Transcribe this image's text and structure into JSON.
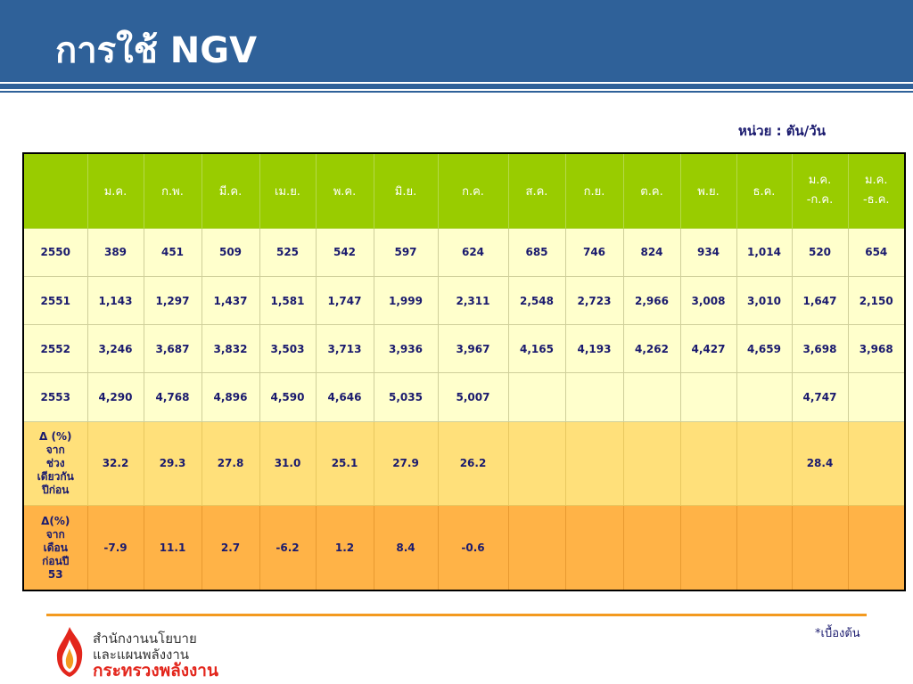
{
  "title": "การใช้ NGV",
  "unit_label": "หน่วย : ตัน/วัน",
  "table": {
    "headers": [
      "",
      "ม.ค.",
      "ก.พ.",
      "มี.ค.",
      "เม.ย.",
      "พ.ค.",
      "มิ.ย.",
      "ก.ค.",
      "ส.ค.",
      "ก.ย.",
      "ต.ค.",
      "พ.ย.",
      "ธ.ค.",
      "ม.ค.\n-ก.ค.",
      "ม.ค.\n-ธ.ค."
    ],
    "rows": [
      [
        "2550",
        "389",
        "451",
        "509",
        "525",
        "542",
        "597",
        "624",
        "685",
        "746",
        "824",
        "934",
        "1,014",
        "520",
        "654"
      ],
      [
        "2551",
        "1,143",
        "1,297",
        "1,437",
        "1,581",
        "1,747",
        "1,999",
        "2,311",
        "2,548",
        "2,723",
        "2,966",
        "3,008",
        "3,010",
        "1,647",
        "2,150"
      ],
      [
        "2552",
        "3,246",
        "3,687",
        "3,832",
        "3,503",
        "3,713",
        "3,936",
        "3,967",
        "4,165",
        "4,193",
        "4,262",
        "4,427",
        "4,659",
        "3,698",
        "3,968"
      ],
      [
        "2553",
        "4,290",
        "4,768",
        "4,896",
        "4,590",
        "4,646",
        "5,035",
        "5,007",
        "",
        "",
        "",
        "",
        "",
        "4,747",
        ""
      ],
      [
        "Δ (%)\nจาก\nช่วง\nเดียวกัน\nปีก่อน",
        "32.2",
        "29.3",
        "27.8",
        "31.0",
        "25.1",
        "27.9",
        "26.2",
        "",
        "",
        "",
        "",
        "",
        "28.4",
        ""
      ],
      [
        "Δ(%)\nจาก\nเดือน\nก่อนปี\n53",
        "-7.9",
        "11.1",
        "2.7",
        "-6.2",
        "1.2",
        "8.4",
        "-0.6",
        "",
        "",
        "",
        "",
        "",
        "",
        ""
      ]
    ]
  },
  "footnote": "*เบื้องต้น",
  "org": {
    "line1": "สำนักงานนโยบาย",
    "line2": "และแผนพลังงาน",
    "line3": "กระทรวงพลังงาน",
    "logo_icon": "flame-logo-icon"
  },
  "colors": {
    "header_blue": "#2f6199",
    "table_header_green": "#99cc00",
    "year_row_bg": "#ffffcc",
    "pct_row1_bg": "#ffe07a",
    "pct_row2_bg": "#ffb347",
    "footer_line_orange": "#f39a1f",
    "org_red": "#e3261c"
  }
}
